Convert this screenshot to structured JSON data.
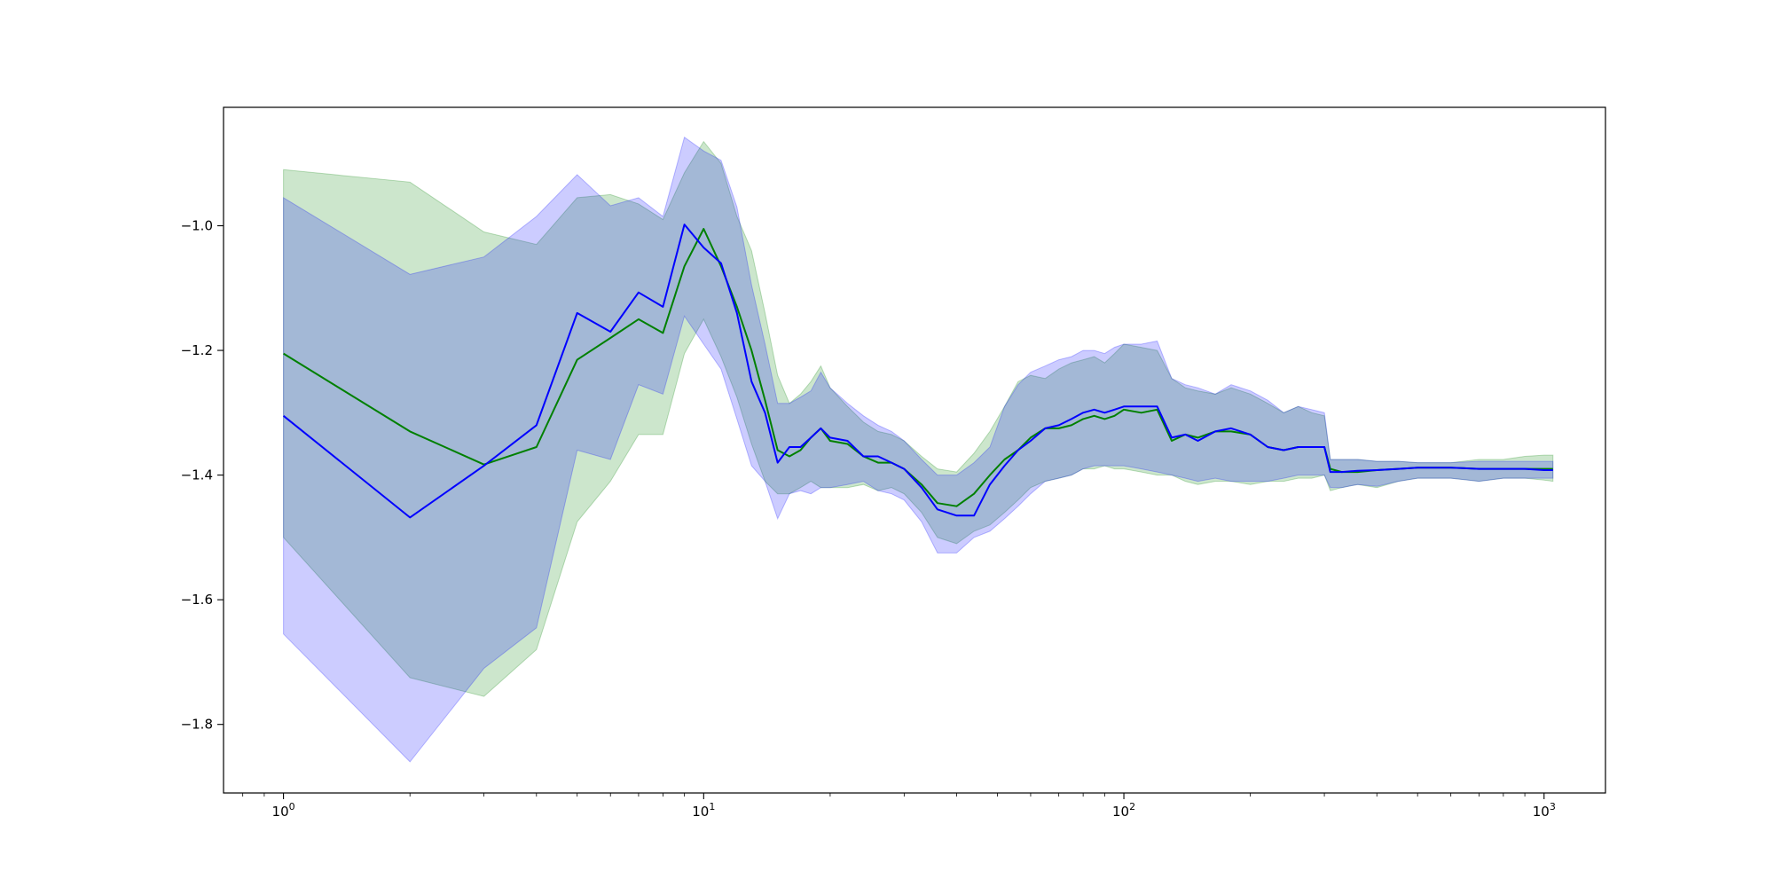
{
  "chart_data": {
    "type": "line",
    "title": "",
    "xlabel": "",
    "ylabel": "",
    "xscale": "log",
    "xlim": [
      0.72,
      1400
    ],
    "ylim": [
      -1.91,
      -0.81
    ],
    "grid": false,
    "legend": "none",
    "x_ticks": [
      {
        "base": "10",
        "exp": "0",
        "value": 1
      },
      {
        "base": "10",
        "exp": "1",
        "value": 10
      },
      {
        "base": "10",
        "exp": "2",
        "value": 100
      },
      {
        "base": "10",
        "exp": "3",
        "value": 1000
      }
    ],
    "y_ticks": [
      {
        "label": "−1.0",
        "value": -1.0
      },
      {
        "label": "−1.2",
        "value": -1.2
      },
      {
        "label": "−1.4",
        "value": -1.4
      },
      {
        "label": "−1.6",
        "value": -1.6
      },
      {
        "label": "−1.8",
        "value": -1.8
      }
    ],
    "series": [
      {
        "color": "#008000",
        "band_color": "#008000",
        "band_opacity": 0.2,
        "x": [
          1,
          2,
          3,
          4,
          5,
          6,
          7,
          8,
          9,
          10,
          11,
          12,
          13,
          14,
          15,
          16,
          17,
          18,
          19,
          20,
          22,
          24,
          26,
          28,
          30,
          33,
          36,
          40,
          44,
          48,
          52,
          56,
          60,
          65,
          70,
          75,
          80,
          85,
          90,
          95,
          100,
          110,
          120,
          130,
          140,
          150,
          165,
          180,
          200,
          220,
          240,
          260,
          280,
          300,
          310,
          330,
          360,
          400,
          450,
          500,
          600,
          700,
          800,
          900,
          1000,
          1050
        ],
        "values": [
          -1.205,
          -1.33,
          -1.383,
          -1.355,
          -1.215,
          -1.18,
          -1.15,
          -1.172,
          -1.065,
          -1.005,
          -1.065,
          -1.13,
          -1.2,
          -1.28,
          -1.36,
          -1.37,
          -1.36,
          -1.34,
          -1.325,
          -1.345,
          -1.35,
          -1.37,
          -1.38,
          -1.38,
          -1.39,
          -1.415,
          -1.445,
          -1.45,
          -1.43,
          -1.4,
          -1.375,
          -1.36,
          -1.34,
          -1.325,
          -1.325,
          -1.32,
          -1.31,
          -1.305,
          -1.31,
          -1.305,
          -1.295,
          -1.3,
          -1.295,
          -1.345,
          -1.335,
          -1.34,
          -1.33,
          -1.33,
          -1.335,
          -1.355,
          -1.36,
          -1.355,
          -1.355,
          -1.355,
          -1.39,
          -1.395,
          -1.395,
          -1.392,
          -1.39,
          -1.388,
          -1.388,
          -1.39,
          -1.39,
          -1.39,
          -1.39,
          -1.39
        ],
        "lower": [
          -1.5,
          -1.725,
          -1.755,
          -1.68,
          -1.475,
          -1.41,
          -1.335,
          -1.335,
          -1.205,
          -1.15,
          -1.21,
          -1.275,
          -1.35,
          -1.41,
          -1.43,
          -1.43,
          -1.42,
          -1.41,
          -1.42,
          -1.42,
          -1.42,
          -1.415,
          -1.425,
          -1.42,
          -1.43,
          -1.46,
          -1.5,
          -1.51,
          -1.49,
          -1.48,
          -1.46,
          -1.44,
          -1.42,
          -1.41,
          -1.405,
          -1.4,
          -1.39,
          -1.39,
          -1.385,
          -1.39,
          -1.39,
          -1.395,
          -1.4,
          -1.4,
          -1.41,
          -1.415,
          -1.41,
          -1.41,
          -1.415,
          -1.41,
          -1.41,
          -1.405,
          -1.405,
          -1.4,
          -1.425,
          -1.42,
          -1.415,
          -1.42,
          -1.41,
          -1.405,
          -1.405,
          -1.41,
          -1.405,
          -1.405,
          -1.408,
          -1.41
        ],
        "upper": [
          -0.91,
          -0.93,
          -1.01,
          -1.03,
          -0.955,
          -0.95,
          -0.965,
          -0.99,
          -0.915,
          -0.865,
          -0.9,
          -0.985,
          -1.04,
          -1.14,
          -1.24,
          -1.285,
          -1.27,
          -1.25,
          -1.225,
          -1.26,
          -1.29,
          -1.315,
          -1.33,
          -1.335,
          -1.345,
          -1.37,
          -1.39,
          -1.395,
          -1.365,
          -1.33,
          -1.29,
          -1.25,
          -1.24,
          -1.245,
          -1.23,
          -1.22,
          -1.215,
          -1.21,
          -1.22,
          -1.205,
          -1.19,
          -1.195,
          -1.2,
          -1.245,
          -1.26,
          -1.265,
          -1.27,
          -1.26,
          -1.27,
          -1.285,
          -1.3,
          -1.29,
          -1.3,
          -1.305,
          -1.375,
          -1.375,
          -1.375,
          -1.378,
          -1.378,
          -1.38,
          -1.38,
          -1.375,
          -1.375,
          -1.37,
          -1.368,
          -1.368
        ]
      },
      {
        "color": "#0000ff",
        "band_color": "#0000ff",
        "band_opacity": 0.2,
        "x": [
          1,
          2,
          3,
          4,
          5,
          6,
          7,
          8,
          9,
          10,
          11,
          12,
          13,
          14,
          15,
          16,
          17,
          18,
          19,
          20,
          22,
          24,
          26,
          28,
          30,
          33,
          36,
          40,
          44,
          48,
          52,
          56,
          60,
          65,
          70,
          75,
          80,
          85,
          90,
          95,
          100,
          110,
          120,
          130,
          140,
          150,
          165,
          180,
          200,
          220,
          240,
          260,
          280,
          300,
          310,
          330,
          360,
          400,
          450,
          500,
          600,
          700,
          800,
          900,
          1000,
          1050
        ],
        "values": [
          -1.305,
          -1.468,
          -1.385,
          -1.32,
          -1.14,
          -1.17,
          -1.107,
          -1.13,
          -0.998,
          -1.035,
          -1.06,
          -1.14,
          -1.25,
          -1.3,
          -1.38,
          -1.355,
          -1.355,
          -1.34,
          -1.325,
          -1.34,
          -1.345,
          -1.37,
          -1.37,
          -1.38,
          -1.39,
          -1.42,
          -1.455,
          -1.465,
          -1.465,
          -1.415,
          -1.385,
          -1.36,
          -1.345,
          -1.325,
          -1.32,
          -1.31,
          -1.3,
          -1.295,
          -1.3,
          -1.295,
          -1.29,
          -1.29,
          -1.29,
          -1.34,
          -1.335,
          -1.345,
          -1.33,
          -1.325,
          -1.335,
          -1.355,
          -1.36,
          -1.355,
          -1.355,
          -1.355,
          -1.395,
          -1.395,
          -1.393,
          -1.392,
          -1.39,
          -1.388,
          -1.388,
          -1.39,
          -1.39,
          -1.39,
          -1.392,
          -1.392
        ],
        "lower": [
          -1.655,
          -1.86,
          -1.71,
          -1.645,
          -1.36,
          -1.375,
          -1.255,
          -1.27,
          -1.145,
          -1.19,
          -1.23,
          -1.31,
          -1.385,
          -1.41,
          -1.47,
          -1.43,
          -1.425,
          -1.43,
          -1.42,
          -1.42,
          -1.415,
          -1.41,
          -1.425,
          -1.43,
          -1.44,
          -1.475,
          -1.525,
          -1.525,
          -1.5,
          -1.49,
          -1.47,
          -1.45,
          -1.43,
          -1.41,
          -1.405,
          -1.4,
          -1.39,
          -1.385,
          -1.385,
          -1.385,
          -1.385,
          -1.39,
          -1.395,
          -1.4,
          -1.405,
          -1.41,
          -1.405,
          -1.41,
          -1.41,
          -1.41,
          -1.405,
          -1.4,
          -1.4,
          -1.4,
          -1.42,
          -1.42,
          -1.415,
          -1.418,
          -1.41,
          -1.405,
          -1.405,
          -1.41,
          -1.405,
          -1.405,
          -1.405,
          -1.405
        ],
        "upper": [
          -0.955,
          -1.078,
          -1.05,
          -0.985,
          -0.918,
          -0.968,
          -0.955,
          -0.985,
          -0.858,
          -0.88,
          -0.895,
          -0.97,
          -1.095,
          -1.19,
          -1.285,
          -1.285,
          -1.275,
          -1.265,
          -1.235,
          -1.26,
          -1.285,
          -1.305,
          -1.32,
          -1.33,
          -1.345,
          -1.375,
          -1.4,
          -1.4,
          -1.38,
          -1.355,
          -1.29,
          -1.255,
          -1.235,
          -1.225,
          -1.215,
          -1.21,
          -1.2,
          -1.2,
          -1.205,
          -1.195,
          -1.19,
          -1.19,
          -1.185,
          -1.245,
          -1.255,
          -1.26,
          -1.27,
          -1.255,
          -1.265,
          -1.28,
          -1.3,
          -1.29,
          -1.295,
          -1.3,
          -1.375,
          -1.375,
          -1.375,
          -1.378,
          -1.378,
          -1.38,
          -1.38,
          -1.378,
          -1.378,
          -1.378,
          -1.378,
          -1.378
        ]
      }
    ]
  }
}
